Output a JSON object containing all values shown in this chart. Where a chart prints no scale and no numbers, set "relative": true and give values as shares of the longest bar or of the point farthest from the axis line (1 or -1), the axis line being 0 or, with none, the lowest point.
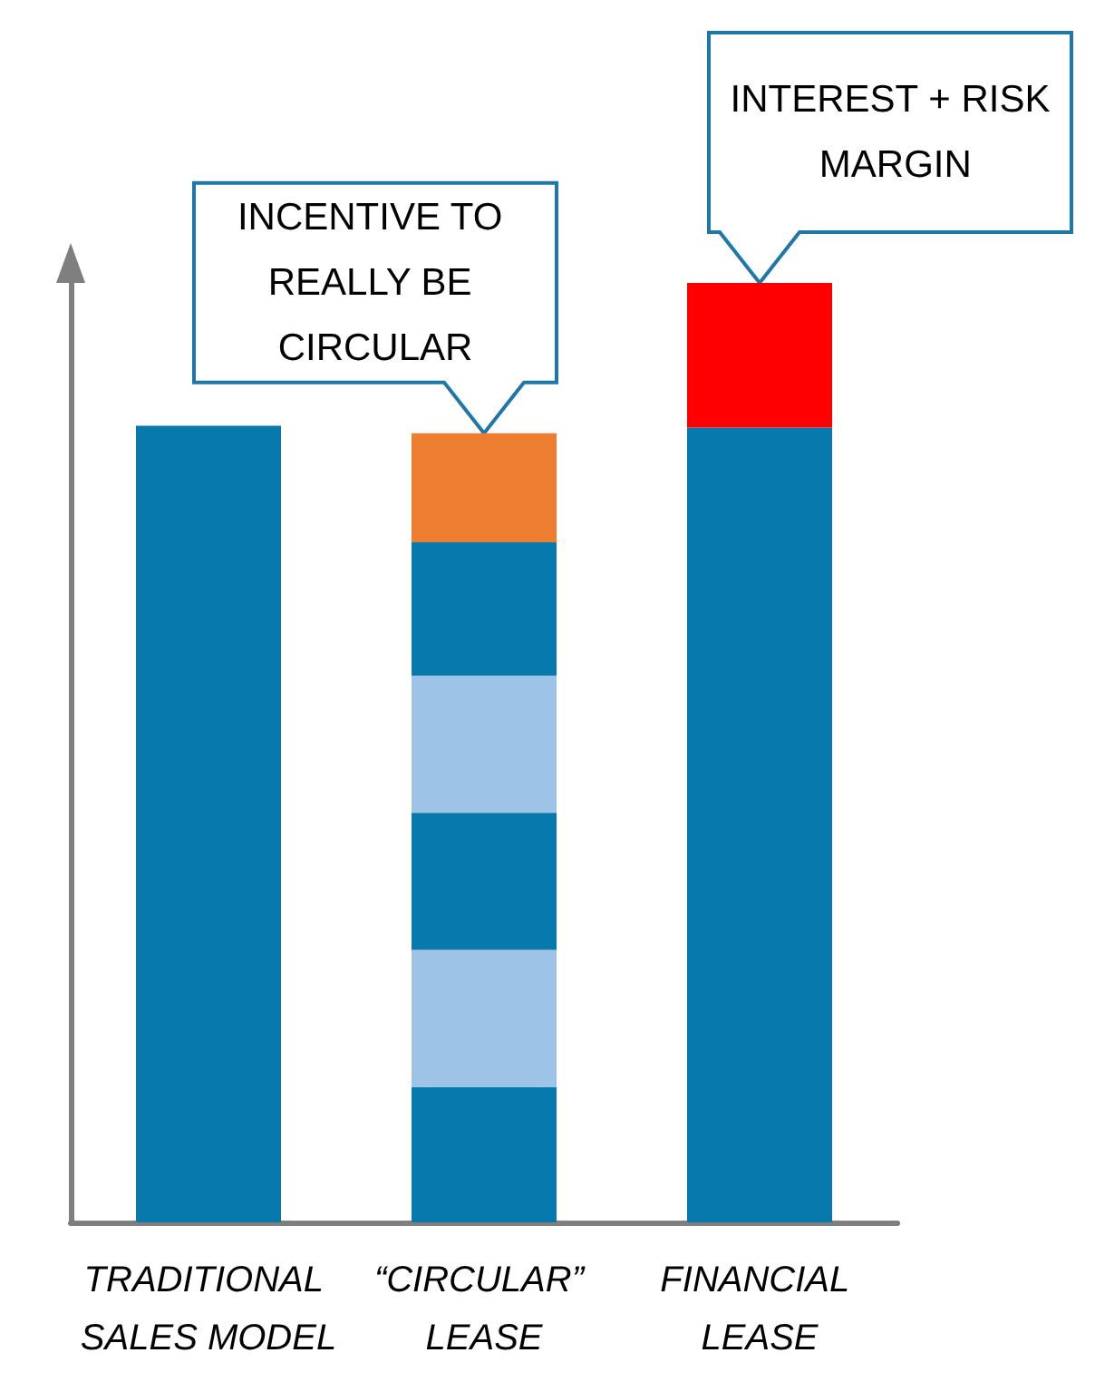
{
  "chart_data": {
    "type": "bar",
    "relative": true,
    "stacked": true,
    "categories": [
      "TRADITIONAL SALES MODEL",
      "“CIRCULAR” LEASE",
      "FINANCIAL LEASE"
    ],
    "series": [
      {
        "color": "#0779ad",
        "values": [
          0.848,
          0.144,
          0.846
        ]
      },
      {
        "color": "#9dc3e6",
        "values": [
          null,
          0.146,
          null
        ]
      },
      {
        "color": "#0779ad",
        "values": [
          null,
          0.146,
          null
        ]
      },
      {
        "color": "#9dc3e6",
        "values": [
          null,
          0.146,
          null
        ]
      },
      {
        "color": "#0779ad",
        "values": [
          null,
          0.142,
          null
        ]
      },
      {
        "color": "#ed7d31",
        "values": [
          null,
          0.116,
          null
        ]
      },
      {
        "color": "#ff0000",
        "values": [
          null,
          null,
          0.154
        ]
      }
    ],
    "annotations": [
      {
        "text": "INCENTIVE TO REALLY BE CIRCULAR",
        "x": "“CIRCULAR” LEASE",
        "y": 0.84
      },
      {
        "text": "INTEREST + RISK MARGIN",
        "x": "FINANCIAL LEASE",
        "y": 1.0
      }
    ]
  }
}
